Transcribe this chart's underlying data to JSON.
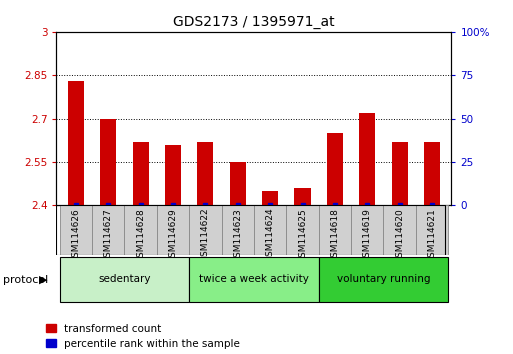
{
  "title": "GDS2173 / 1395971_at",
  "categories": [
    "GSM114626",
    "GSM114627",
    "GSM114628",
    "GSM114629",
    "GSM114622",
    "GSM114623",
    "GSM114624",
    "GSM114625",
    "GSM114618",
    "GSM114619",
    "GSM114620",
    "GSM114621"
  ],
  "red_values": [
    2.83,
    2.7,
    2.62,
    2.61,
    2.62,
    2.55,
    2.45,
    2.46,
    2.65,
    2.72,
    2.62,
    2.62
  ],
  "ylim_left": [
    2.4,
    3.0
  ],
  "ylim_right": [
    0,
    100
  ],
  "yticks_left": [
    2.4,
    2.55,
    2.7,
    2.85,
    3.0
  ],
  "yticks_right": [
    0,
    25,
    50,
    75,
    100
  ],
  "ytick_labels_left": [
    "2.4",
    "2.55",
    "2.7",
    "2.85",
    "3"
  ],
  "ytick_labels_right": [
    "0",
    "25",
    "50",
    "75",
    "100%"
  ],
  "groups": [
    {
      "label": "sedentary",
      "indices": [
        0,
        1,
        2,
        3
      ],
      "color": "#c8f0c8"
    },
    {
      "label": "twice a week activity",
      "indices": [
        4,
        5,
        6,
        7
      ],
      "color": "#88ee88"
    },
    {
      "label": "voluntary running",
      "indices": [
        8,
        9,
        10,
        11
      ],
      "color": "#33cc33"
    }
  ],
  "bar_color": "#cc0000",
  "dot_color": "#0000cc",
  "bar_width": 0.5,
  "protocol_label": "protocol",
  "legend_items": [
    {
      "color": "#cc0000",
      "label": "transformed count"
    },
    {
      "color": "#0000cc",
      "label": "percentile rank within the sample"
    }
  ],
  "tick_color_left": "#cc0000",
  "tick_color_right": "#0000cc",
  "xtick_bg_color": "#d0d0d0",
  "xtick_border_color": "#888888"
}
